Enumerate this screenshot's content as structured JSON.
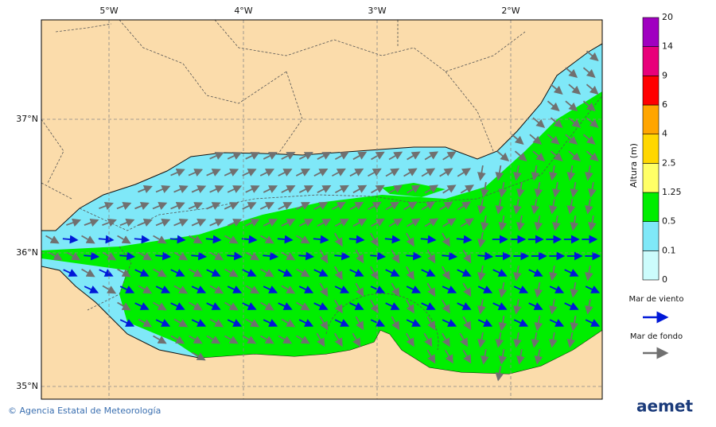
{
  "map": {
    "lon_labels": [
      "5°W",
      "4°W",
      "3°W",
      "2°W"
    ],
    "lat_labels": [
      "37°N",
      "36°N",
      "35°N"
    ],
    "legend": {
      "title": "Altura (m)",
      "levels": [
        0,
        0.1,
        0.5,
        1.25,
        2.5,
        4,
        6,
        9,
        14,
        20
      ],
      "colors": [
        "#ccfcfc",
        "#7fe8f8",
        "#00ee00",
        "#ffff66",
        "#ffd700",
        "#ffa500",
        "#ff0000",
        "#e8007a",
        "#a000c0"
      ],
      "wind_sea": "Mar de viento",
      "swell": "Mar de fondo"
    },
    "footer": {
      "credit": "© Agencia Estatal de Meteorología",
      "logo": "aemet"
    }
  }
}
